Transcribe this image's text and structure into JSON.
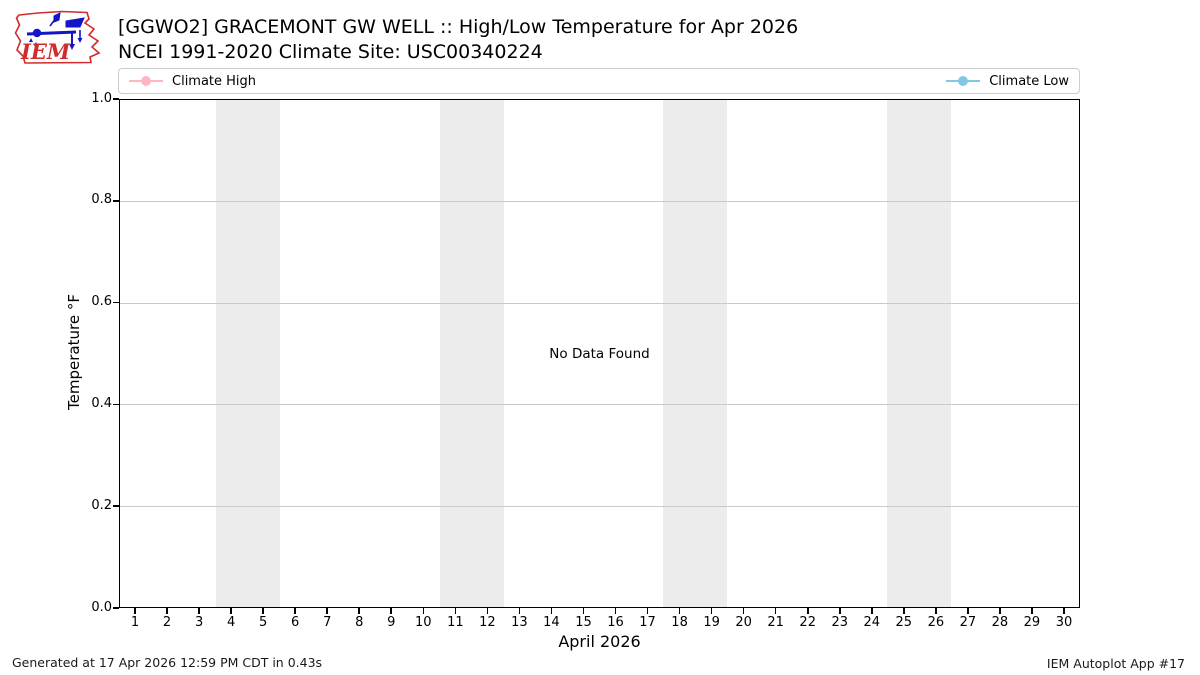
{
  "logo": {
    "label": "IEM",
    "state": "Iowa",
    "accent_red": "#d12b2b",
    "accent_blue": "#1414c8"
  },
  "header": {
    "title": "[GGWO2] GRACEMONT GW WELL :: High/Low Temperature for Apr 2026",
    "subtitle": "NCEI 1991-2020 Climate Site: USC00340224"
  },
  "legend": {
    "items": [
      {
        "label": "Climate High",
        "color": "#ffb6c1"
      },
      {
        "label": "Climate Low",
        "color": "#82c8e6"
      }
    ]
  },
  "chart_data": {
    "type": "line",
    "title": "[GGWO2] GRACEMONT GW WELL :: High/Low Temperature for Apr 2026",
    "subtitle": "NCEI 1991-2020 Climate Site: USC00340224",
    "xlabel": "April 2026",
    "ylabel": "Temperature °F",
    "xlim": [
      0.5,
      30.5
    ],
    "ylim": [
      0.0,
      1.0
    ],
    "x_ticks": [
      1,
      2,
      3,
      4,
      5,
      6,
      7,
      8,
      9,
      10,
      11,
      12,
      13,
      14,
      15,
      16,
      17,
      18,
      19,
      20,
      21,
      22,
      23,
      24,
      25,
      26,
      27,
      28,
      29,
      30
    ],
    "y_ticks": [
      "0.0",
      "0.2",
      "0.4",
      "0.6",
      "0.8",
      "1.0"
    ],
    "grid": "horizontal",
    "weekend_bands": [
      [
        3.5,
        5.5
      ],
      [
        10.5,
        12.5
      ],
      [
        17.5,
        19.5
      ],
      [
        24.5,
        26.5
      ]
    ],
    "band_color": "#ececec",
    "series": [
      {
        "name": "Climate High",
        "color": "#ffb6c1",
        "values": []
      },
      {
        "name": "Climate Low",
        "color": "#82c8e6",
        "values": []
      }
    ],
    "annotation": "No Data Found",
    "legend_position": "top, expanded full width"
  },
  "footer": {
    "left": "Generated at 17 Apr 2026 12:59 PM CDT in 0.43s",
    "right": "IEM Autoplot App #17"
  }
}
